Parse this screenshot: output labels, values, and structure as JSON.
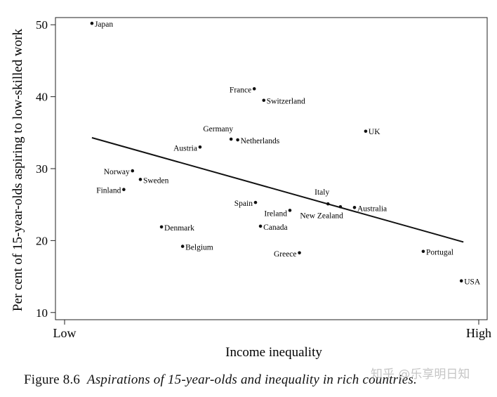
{
  "chart_data": {
    "type": "scatter",
    "ylabel": "Per cent of 15-year-olds aspiring to low-skilled work",
    "xlabel": "Income inequality",
    "x_tick_labels": [
      "Low",
      "High"
    ],
    "y_ticks": [
      10,
      20,
      30,
      40,
      50
    ],
    "ylim": [
      9,
      51
    ],
    "xlim": [
      0,
      100
    ],
    "grid": false,
    "legend": "none",
    "points": [
      {
        "label": "Japan",
        "x": 6.6,
        "y": 50.2
      },
      {
        "label": "France",
        "x": 45.8,
        "y": 41.1
      },
      {
        "label": "Switzerland",
        "x": 48.1,
        "y": 39.5
      },
      {
        "label": "UK",
        "x": 72.7,
        "y": 35.2
      },
      {
        "label": "Germany",
        "x": 40.2,
        "y": 34.1
      },
      {
        "label": "Netherlands",
        "x": 41.8,
        "y": 34.0
      },
      {
        "label": "Austria",
        "x": 32.7,
        "y": 33.0
      },
      {
        "label": "Norway",
        "x": 16.4,
        "y": 29.7
      },
      {
        "label": "Sweden",
        "x": 18.3,
        "y": 28.5
      },
      {
        "label": "Finland",
        "x": 14.3,
        "y": 27.1
      },
      {
        "label": "Italy",
        "x": 63.6,
        "y": 25.1
      },
      {
        "label": "New Zealand",
        "x": 66.6,
        "y": 24.7
      },
      {
        "label": "Australia",
        "x": 70.0,
        "y": 24.6
      },
      {
        "label": "Spain",
        "x": 46.1,
        "y": 25.3
      },
      {
        "label": "Ireland",
        "x": 54.4,
        "y": 24.2
      },
      {
        "label": "Canada",
        "x": 47.3,
        "y": 22.0
      },
      {
        "label": "Denmark",
        "x": 23.4,
        "y": 21.9
      },
      {
        "label": "Belgium",
        "x": 28.5,
        "y": 19.2
      },
      {
        "label": "Greece",
        "x": 56.7,
        "y": 18.3
      },
      {
        "label": "Portugal",
        "x": 86.6,
        "y": 18.5
      },
      {
        "label": "USA",
        "x": 95.8,
        "y": 14.4
      }
    ],
    "trend_line": {
      "x": [
        6.6,
        96.3
      ],
      "y": [
        34.3,
        19.8
      ]
    }
  },
  "caption": {
    "number": "Figure 8.6",
    "text": "Aspirations of 15-year-olds and inequality in rich countries."
  },
  "watermark": "知乎 @乐享明日知"
}
